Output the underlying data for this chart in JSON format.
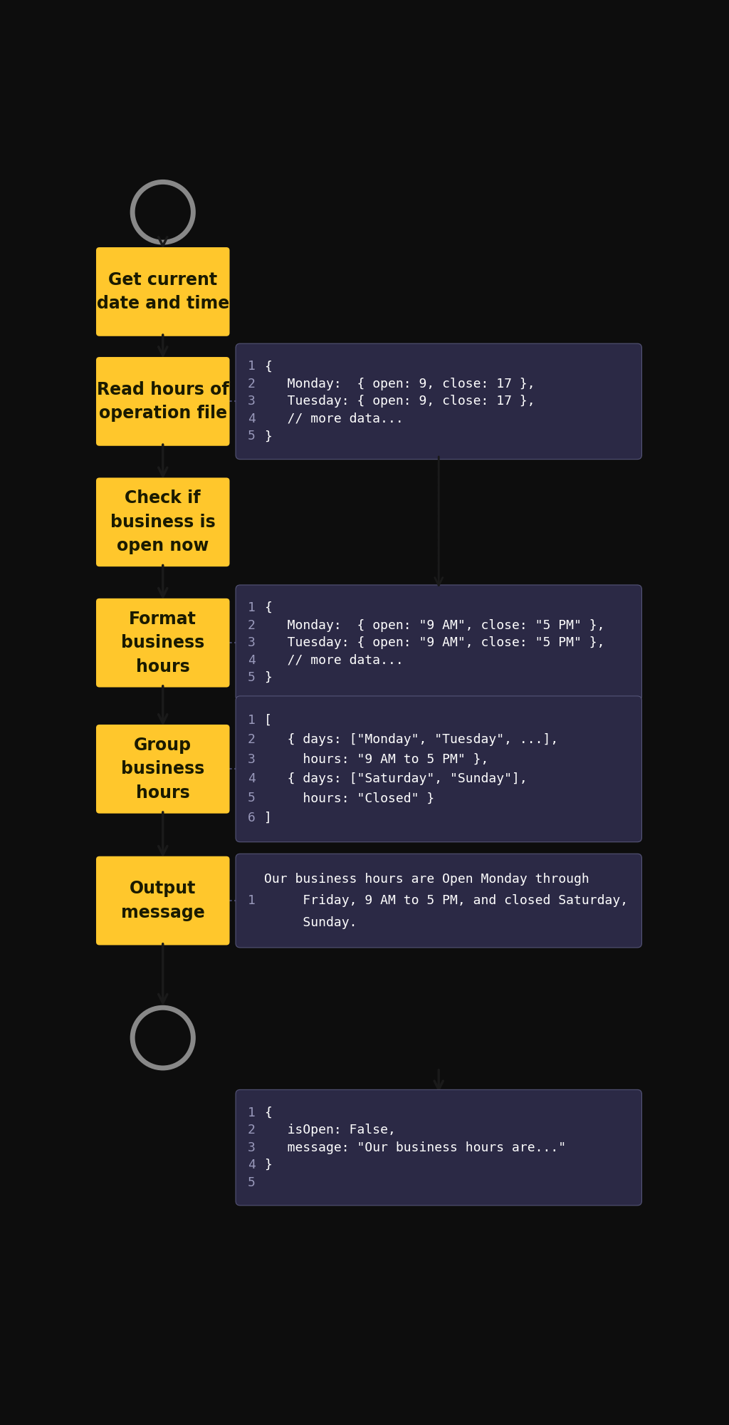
{
  "bg_color": "#0d0d0d",
  "yellow_color": "#FFC72C",
  "box_text_color": "#1a1a00",
  "code_bg_color": "#2b2945",
  "code_text_color": "#ffffff",
  "code_num_color": "#9999bb",
  "arrow_dark": "#1a1a1a",
  "circle_color": "#888888",
  "steps": [
    "Get current\ndate and time",
    "Read hours of\noperation file",
    "Check if\nbusiness is\nopen now",
    "Format\nbusiness\nhours",
    "Group\nbusiness\nhours",
    "Output\nmessage"
  ],
  "code_blocks": [
    {
      "lines": [
        [
          "1",
          "{"
        ],
        [
          "2",
          "   Monday:  { open: 9, close: 17 },"
        ],
        [
          "3",
          "   Tuesday: { open: 9, close: 17 },"
        ],
        [
          "4",
          "   // more data..."
        ],
        [
          "5",
          "}"
        ]
      ]
    },
    {
      "lines": [
        [
          "1",
          "{"
        ],
        [
          "2",
          "   Monday:  { open: \"9 AM\", close: \"5 PM\" },"
        ],
        [
          "3",
          "   Tuesday: { open: \"9 AM\", close: \"5 PM\" },"
        ],
        [
          "4",
          "   // more data..."
        ],
        [
          "5",
          "}"
        ]
      ]
    },
    {
      "lines": [
        [
          "1",
          "["
        ],
        [
          "2",
          "   { days: [\"Monday\", \"Tuesday\", ...],"
        ],
        [
          "3",
          "     hours: \"9 AM to 5 PM\" },"
        ],
        [
          "4",
          "   { days: [\"Saturday\", \"Sunday\"],"
        ],
        [
          "5",
          "     hours: \"Closed\" }"
        ],
        [
          "6",
          "]"
        ]
      ]
    },
    {
      "lines": [
        [
          "1",
          "Our business hours are Open Monday through\n     Friday, 9 AM to 5 PM, and closed Saturday,\n     Sunday."
        ]
      ]
    },
    {
      "lines": [
        [
          "1",
          "{"
        ],
        [
          "2",
          "   isOpen: False,"
        ],
        [
          "3",
          "   message: \"Our business hours are...\""
        ],
        [
          "4",
          "}"
        ],
        [
          "5",
          ""
        ]
      ]
    }
  ]
}
